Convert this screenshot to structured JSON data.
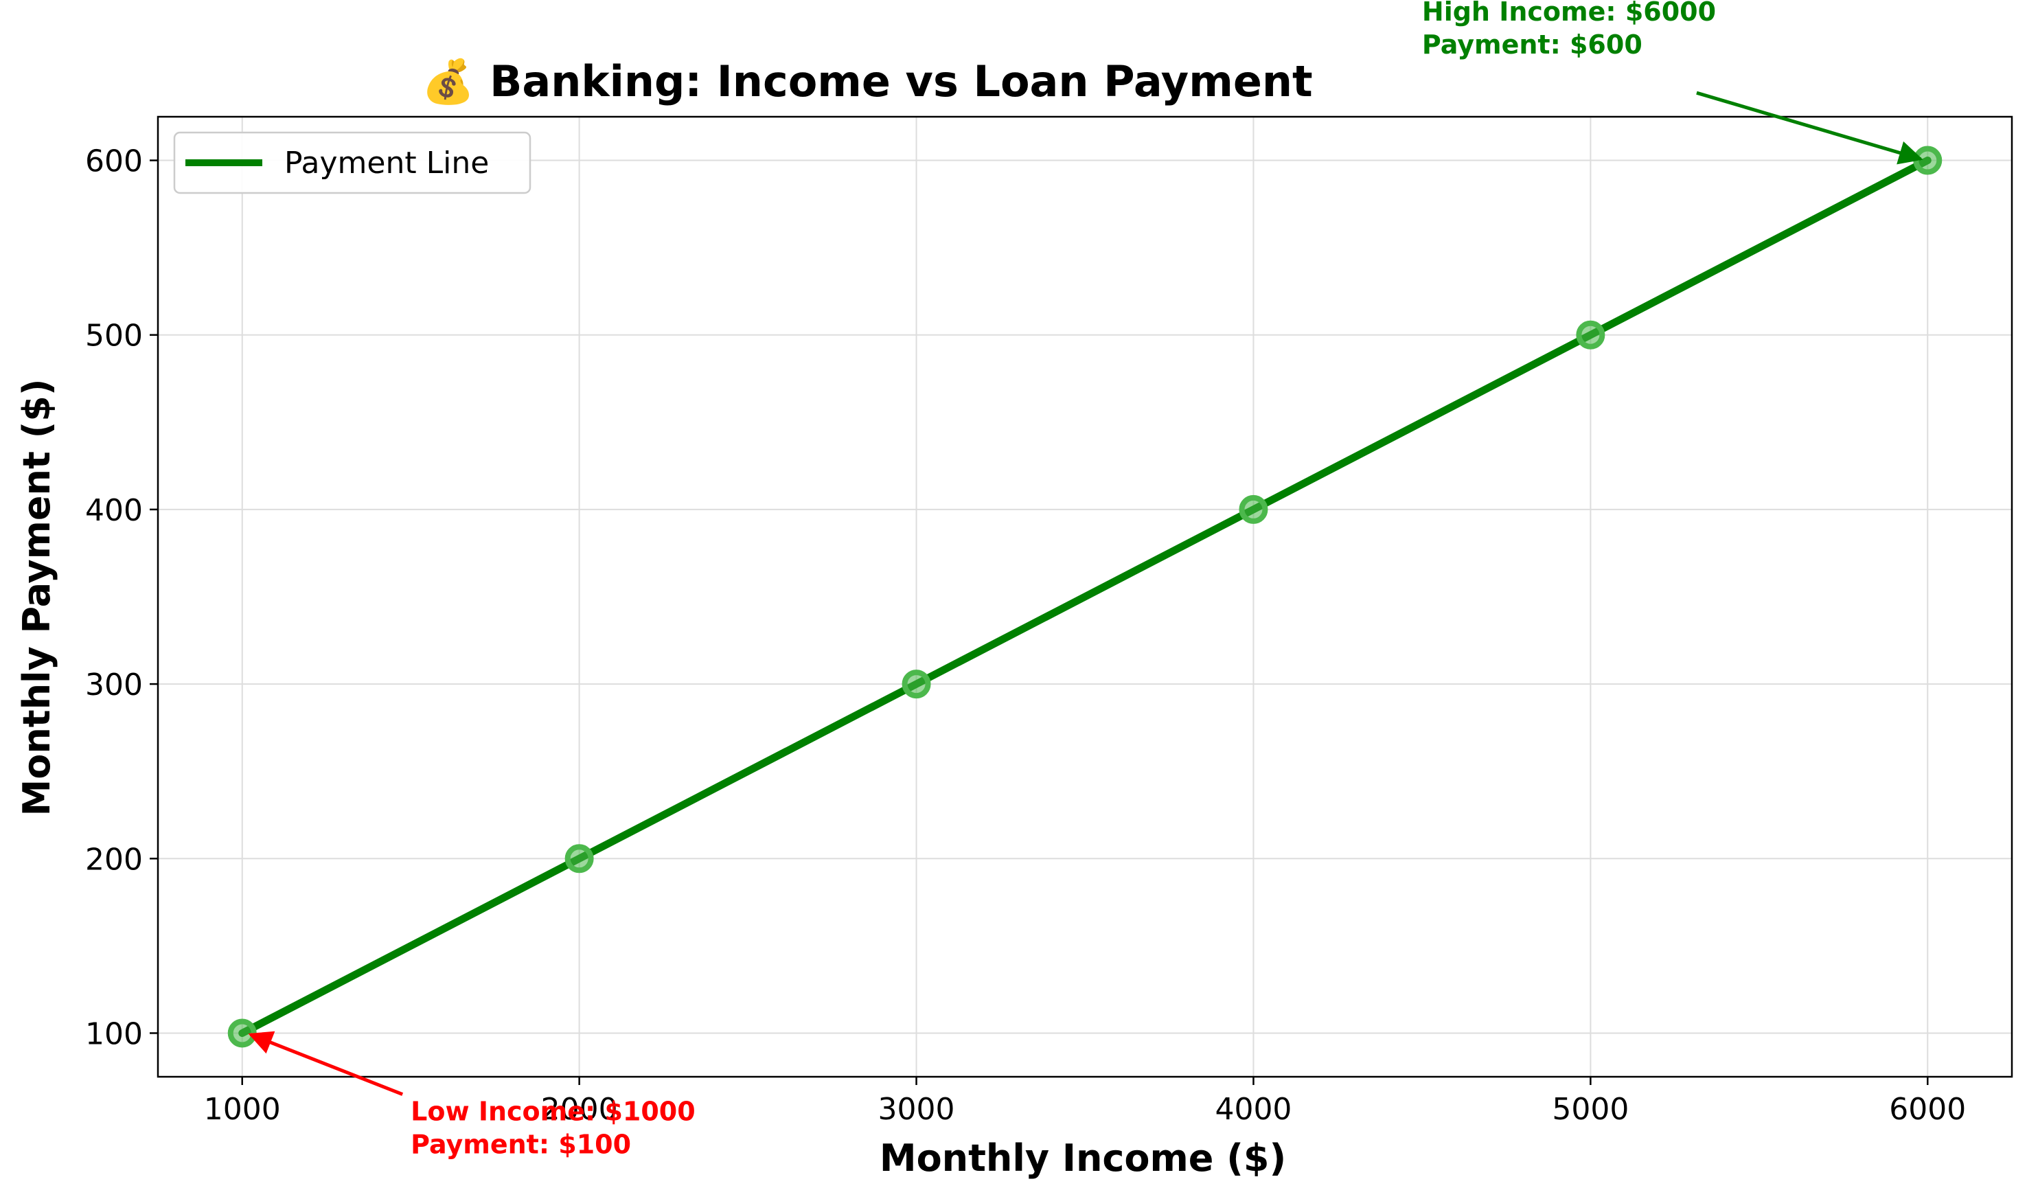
{
  "chart_data": {
    "type": "line",
    "title": "💰 Banking: Income vs Loan Payment",
    "xlabel": "Monthly Income ($)",
    "ylabel": "Monthly Payment ($)",
    "xlim": [
      750,
      6250
    ],
    "ylim": [
      75,
      625
    ],
    "xticks": [
      1000,
      2000,
      3000,
      4000,
      5000,
      6000
    ],
    "yticks": [
      100,
      200,
      300,
      400,
      500,
      600
    ],
    "grid": true,
    "legend": {
      "position": "upper-left",
      "entries": [
        "Payment Line"
      ]
    },
    "series": [
      {
        "name": "Payment Line",
        "color": "#008000",
        "marker_color": "#4cb84c",
        "x": [
          1000,
          2000,
          3000,
          4000,
          5000,
          6000
        ],
        "y": [
          100,
          200,
          300,
          400,
          500,
          600
        ]
      }
    ],
    "annotations": [
      {
        "lines": [
          "High Income: $6000",
          "Payment: $600"
        ],
        "point": [
          6000,
          600
        ],
        "text_anchor": [
          4500,
          680
        ],
        "color": "#008000"
      },
      {
        "lines": [
          "Low Income: $1000",
          "Payment: $100"
        ],
        "point": [
          1000,
          100
        ],
        "text_anchor": [
          1500,
          50
        ],
        "color": "#ff0000"
      }
    ]
  }
}
